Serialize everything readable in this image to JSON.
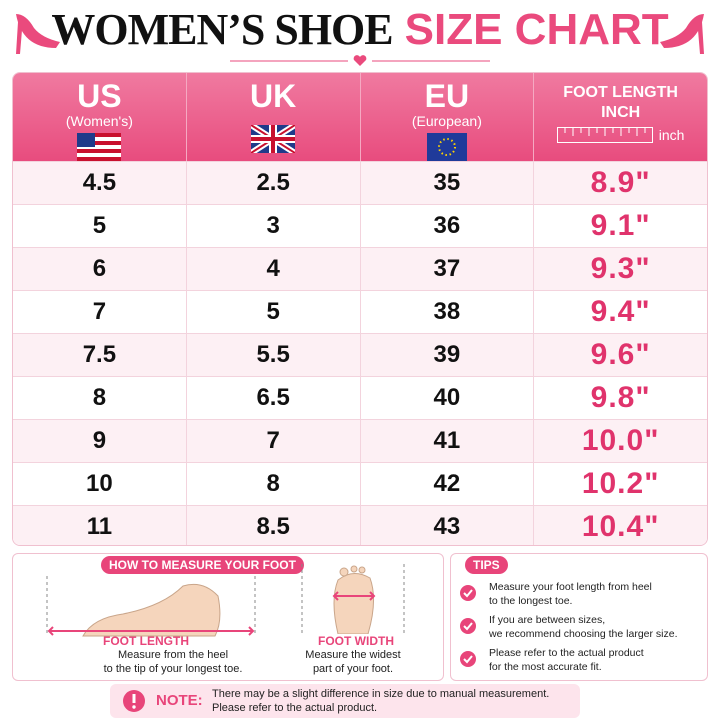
{
  "header": {
    "title_main": "WOMEN’S SHOE",
    "title_accent": "SIZE CHART"
  },
  "table": {
    "columns": [
      {
        "title": "US",
        "subtitle": "(Women's)"
      },
      {
        "title": "UK"
      },
      {
        "title": "EU",
        "subtitle": "(European)"
      },
      {
        "title": "FOOT LENGTH",
        "subtitle": "INCH",
        "unit": "inch"
      }
    ],
    "rows": [
      [
        "4.5",
        "2.5",
        "35",
        "8.9\""
      ],
      [
        "5",
        "3",
        "36",
        "9.1\""
      ],
      [
        "6",
        "4",
        "37",
        "9.3\""
      ],
      [
        "7",
        "5",
        "38",
        "9.4\""
      ],
      [
        "7.5",
        "5.5",
        "39",
        "9.6\""
      ],
      [
        "8",
        "6.5",
        "40",
        "9.8\""
      ],
      [
        "9",
        "7",
        "41",
        "10.0\""
      ],
      [
        "10",
        "8",
        "42",
        "10.2\""
      ],
      [
        "11",
        "8.5",
        "43",
        "10.4\""
      ]
    ]
  },
  "measure": {
    "title": "HOW TO MEASURE YOUR FOOT",
    "length_label": "FOOT LENGTH",
    "length_desc": [
      "Measure from the heel",
      "to the tip of your longest toe."
    ],
    "width_label": "FOOT WIDTH",
    "width_desc": [
      "Measure the widest",
      "part of your foot."
    ]
  },
  "tips": {
    "title": "TIPS",
    "items": [
      [
        "Measure your foot length from heel",
        "to the longest toe."
      ],
      [
        "If you are between sizes,",
        "we recommend choosing the larger size."
      ],
      [
        "Please refer to the actual product",
        "for the most accurate fit."
      ]
    ]
  },
  "note": {
    "label": "NOTE:",
    "lines": [
      "There may be a slight difference in size due to manual measurement.",
      "Please refer to the actual product."
    ]
  }
}
